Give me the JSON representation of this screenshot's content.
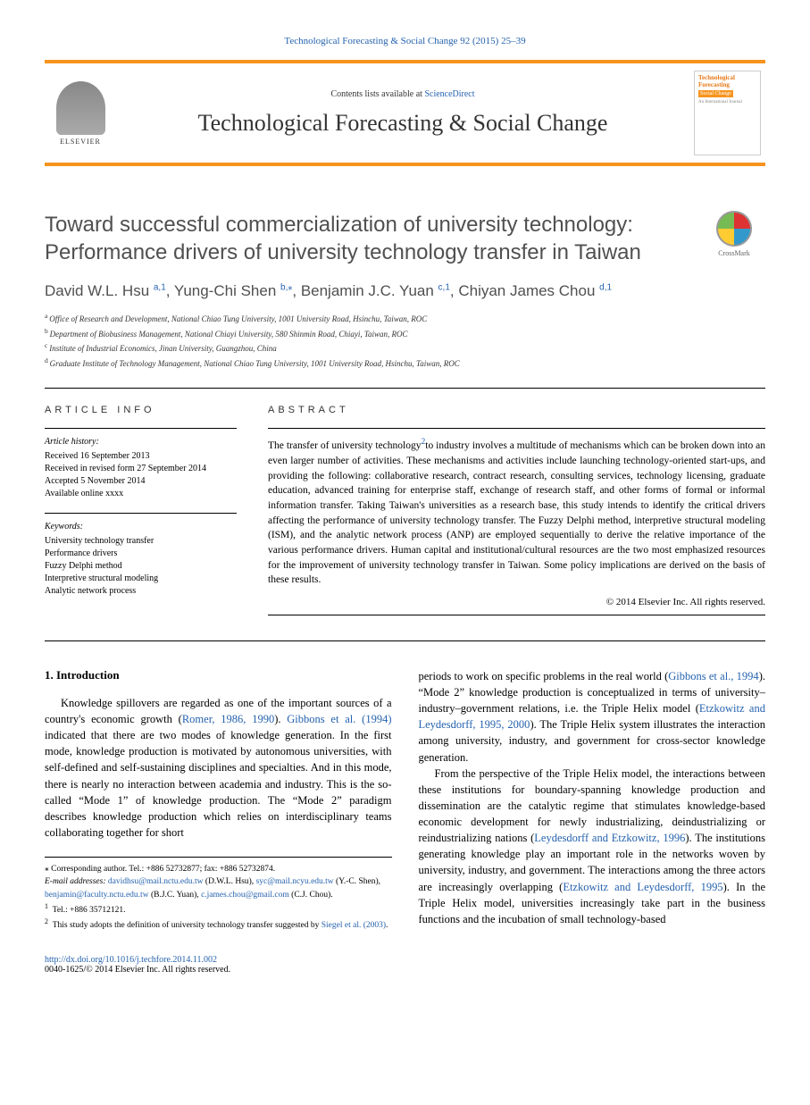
{
  "header": {
    "citation": "Technological Forecasting & Social Change 92 (2015) 25–39",
    "contents_prefix": "Contents lists available at ",
    "contents_link": "ScienceDirect",
    "journal_name": "Technological Forecasting & Social Change",
    "elsevier": "ELSEVIER",
    "cover_title": "Technological Forecasting",
    "cover_sub": "Social Change",
    "cover_tag": "An International Journal"
  },
  "crossmark": "CrossMark",
  "title": "Toward successful commercialization of university technology: Performance drivers of university technology transfer in Taiwan",
  "authors_list": [
    {
      "name": "David W.L. Hsu",
      "sup": "a,1"
    },
    {
      "name": "Yung-Chi Shen",
      "sup": "b,",
      "star": true
    },
    {
      "name": "Benjamin J.C. Yuan",
      "sup": "c,1"
    },
    {
      "name": "Chiyan James Chou",
      "sup": "d,1"
    }
  ],
  "affiliations": [
    {
      "sup": "a",
      "text": "Office of Research and Development, National Chiao Tung University, 1001 University Road, Hsinchu, Taiwan, ROC"
    },
    {
      "sup": "b",
      "text": "Department of Biobusiness Management, National Chiayi University, 580 Shinmin Road, Chiayi, Taiwan, ROC"
    },
    {
      "sup": "c",
      "text": "Institute of Industrial Economics, Jinan University, Guangzhou, China"
    },
    {
      "sup": "d",
      "text": "Graduate Institute of Technology Management, National Chiao Tung University, 1001 University Road, Hsinchu, Taiwan, ROC"
    }
  ],
  "info": {
    "heading": "ARTICLE INFO",
    "history_label": "Article history:",
    "history": [
      "Received 16 September 2013",
      "Received in revised form 27 September 2014",
      "Accepted 5 November 2014",
      "Available online xxxx"
    ],
    "keywords_label": "Keywords:",
    "keywords": [
      "University technology transfer",
      "Performance drivers",
      "Fuzzy Delphi method",
      "Interpretive structural modeling",
      "Analytic network process"
    ]
  },
  "abstract": {
    "heading": "ABSTRACT",
    "text_pre": "The transfer of university technology",
    "fn": "2",
    "text_post": "to industry involves a multitude of mechanisms which can be broken down into an even larger number of activities. These mechanisms and activities include launching technology-oriented start-ups, and providing the following: collaborative research, contract research, consulting services, technology licensing, graduate education, advanced training for enterprise staff, exchange of research staff, and other forms of formal or informal information transfer. Taking Taiwan's universities as a research base, this study intends to identify the critical drivers affecting the performance of university technology transfer. The Fuzzy Delphi method, interpretive structural modeling (ISM), and the analytic network process (ANP) are employed sequentially to derive the relative importance of the various performance drivers. Human capital and institutional/cultural resources are the two most emphasized resources for the improvement of university technology transfer in Taiwan. Some policy implications are derived on the basis of these results.",
    "copyright": "© 2014 Elsevier Inc. All rights reserved."
  },
  "section1": {
    "heading": "1. Introduction",
    "col1_para1_pre": "Knowledge spillovers are regarded as one of the important sources of a country's economic growth (",
    "col1_link1": "Romer, 1986, 1990",
    "col1_para1_mid1": "). ",
    "col1_link2": "Gibbons et al. (1994)",
    "col1_para1_post": " indicated that there are two modes of knowledge generation. In the first mode, knowledge production is motivated by autonomous universities, with self-defined and self-sustaining disciplines and specialties. And in this mode, there is nearly no interaction between academia and industry. This is the so-called “Mode 1” of knowledge production. The “Mode 2” paradigm describes knowledge production which relies on interdisciplinary teams collaborating together for short",
    "col2_cont_pre": "periods to work on specific problems in the real world (",
    "col2_link1": "Gibbons et al., 1994",
    "col2_cont_mid1": "). “Mode 2” knowledge production is conceptualized in terms of university–industry–government relations, i.e. the Triple Helix model (",
    "col2_link2": "Etzkowitz and Leydesdorff, 1995, 2000",
    "col2_cont_post": "). The Triple Helix system illustrates the interaction among university, industry, and government for cross-sector knowledge generation.",
    "col2_para2_pre": "From the perspective of the Triple Helix model, the interactions between these institutions for boundary-spanning knowledge production and dissemination are the catalytic regime that stimulates knowledge-based economic development for newly industrializing, deindustrializing or reindustrializing nations (",
    "col2_link3": "Leydesdorff and Etzkowitz, 1996",
    "col2_para2_mid1": "). The institutions generating knowledge play an important role in the networks woven by university, industry, and government. The interactions among the three actors are increasingly overlapping (",
    "col2_link4": "Etzkowitz and Leydesdorff, 1995",
    "col2_para2_post": "). In the Triple Helix model, universities increasingly take part in the business functions and the incubation of small technology-based"
  },
  "footnotes": {
    "corr_pre": "⁎  Corresponding author. Tel.: +886 52732877; fax: +886 52732874.",
    "email_label": "E-mail addresses:",
    "emails": [
      {
        "addr": "davidhsu@mail.nctu.edu.tw",
        "who": "(D.W.L. Hsu),"
      },
      {
        "addr": "syc@mail.ncyu.edu.tw",
        "who": "(Y.-C. Shen),"
      },
      {
        "addr": "benjamin@faculty.nctu.edu.tw",
        "who": "(B.J.C. Yuan),"
      },
      {
        "addr": "c.james.chou@gmail.com",
        "who": "(C.J. Chou)."
      }
    ],
    "fn1": "Tel.: +886 35712121.",
    "fn2_pre": "This study adopts the definition of university technology transfer suggested by ",
    "fn2_link": "Siegel et al. (2003)",
    "fn2_post": "."
  },
  "footer": {
    "doi": "http://dx.doi.org/10.1016/j.techfore.2014.11.002",
    "issn_line": "0040-1625/© 2014 Elsevier Inc. All rights reserved."
  },
  "colors": {
    "accent_orange": "#f7941e",
    "link_blue": "#2562ae",
    "title_gray": "#505050"
  }
}
